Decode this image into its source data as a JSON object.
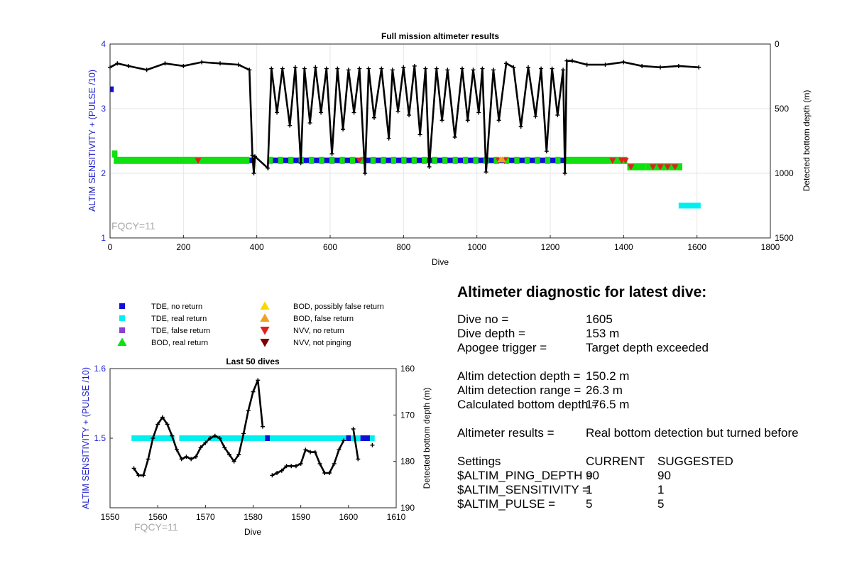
{
  "colors": {
    "tde_no_return": "#1010d8",
    "tde_real_return": "#00f0f0",
    "tde_false_return": "#8a3fd8",
    "bod_real_return": "#10e010",
    "bod_possibly_false": "#f8d800",
    "bod_false_return": "#f0a020",
    "nvv_no_return": "#e02020",
    "nvv_not_pinging": "#800000",
    "left_axis": "#1f1fcf",
    "fqcy_label": "#a8a8a8"
  },
  "legend": {
    "items": [
      {
        "label": "TDE, no return",
        "marker": "square",
        "color": "#1010d8"
      },
      {
        "label": "TDE, real return",
        "marker": "square",
        "color": "#00f0f0"
      },
      {
        "label": "TDE, false return",
        "marker": "square",
        "color": "#8a3fd8"
      },
      {
        "label": "BOD, real return",
        "marker": "triangle-up",
        "color": "#10e010"
      },
      {
        "label": "BOD, possibly false return",
        "marker": "triangle-up",
        "color": "#f8d800"
      },
      {
        "label": "BOD, false return",
        "marker": "triangle-up",
        "color": "#f0a020"
      },
      {
        "label": "NVV, no return",
        "marker": "triangle-down",
        "color": "#e02020"
      },
      {
        "label": "NVV, not pinging",
        "marker": "triangle-down",
        "color": "#800000"
      }
    ]
  },
  "chart_data": [
    {
      "type": "scatter",
      "title": "Full mission altimeter results",
      "xlabel": "Dive",
      "ylabel": "ALTIM SENSITIVITY + (PULSE /10)",
      "ylabel_right": "Detected bottom depth (m)",
      "xlim": [
        0,
        1800
      ],
      "ylim": [
        1,
        4
      ],
      "ylim_right": [
        1500,
        0
      ],
      "right_axis_reversed": true,
      "xticks": [
        0,
        200,
        400,
        600,
        800,
        1000,
        1200,
        1400,
        1600,
        1800
      ],
      "yticks": [
        1,
        2,
        3,
        4
      ],
      "yticks_right": [
        0,
        500,
        1000,
        1500
      ],
      "grid": true,
      "annotation": "FQCY=11",
      "settings_segments": [
        {
          "x_from": 0,
          "x_to": 10,
          "y": 3.3,
          "category": "TDE, no return"
        },
        {
          "x_from": 5,
          "x_to": 20,
          "y": 2.3,
          "category": "BOD, real return"
        },
        {
          "x_from": 10,
          "x_to": 380,
          "y": 2.2,
          "category": "BOD, real return"
        },
        {
          "x_from": 380,
          "x_to": 395,
          "y": 2.2,
          "category": "TDE, no return"
        },
        {
          "x_from": 430,
          "x_to": 1240,
          "y": 2.2,
          "category": "TDE, no return"
        },
        {
          "x_from": 430,
          "x_to": 1240,
          "y": 2.2,
          "category": "BOD, real return",
          "intermittent": true
        },
        {
          "x_from": 1240,
          "x_to": 1410,
          "y": 2.2,
          "category": "BOD, real return"
        },
        {
          "x_from": 1410,
          "x_to": 1460,
          "y": 2.1,
          "category": "BOD, real return"
        },
        {
          "x_from": 1460,
          "x_to": 1560,
          "y": 2.1,
          "category": "BOD, real return"
        },
        {
          "x_from": 1550,
          "x_to": 1610,
          "y": 1.5,
          "category": "TDE, real return"
        }
      ],
      "nvv_no_return_dives": [
        240,
        680,
        1060,
        1075,
        1370,
        1395,
        1405,
        1420,
        1480,
        1500,
        1520,
        1540
      ],
      "bod_false_return_dives": [
        1065,
        1070
      ],
      "bottom_depth": {
        "x": [
          0,
          20,
          50,
          100,
          150,
          200,
          250,
          300,
          350,
          380,
          388,
          392,
          395,
          430,
          440,
          455,
          470,
          490,
          505,
          520,
          530,
          545,
          560,
          575,
          590,
          605,
          620,
          635,
          650,
          665,
          680,
          695,
          705,
          720,
          740,
          760,
          770,
          785,
          800,
          815,
          830,
          845,
          860,
          870,
          890,
          905,
          920,
          940,
          960,
          975,
          990,
          1005,
          1015,
          1025,
          1045,
          1060,
          1080,
          1100,
          1120,
          1140,
          1160,
          1175,
          1190,
          1205,
          1220,
          1235,
          1240,
          1245,
          1260,
          1300,
          1350,
          1400,
          1450,
          1500,
          1550,
          1605
        ],
        "y": [
          180,
          150,
          170,
          200,
          150,
          170,
          140,
          150,
          160,
          200,
          860,
          1000,
          870,
          960,
          190,
          530,
          190,
          630,
          180,
          920,
          190,
          610,
          180,
          530,
          190,
          850,
          190,
          660,
          200,
          530,
          190,
          1000,
          190,
          570,
          190,
          730,
          200,
          520,
          180,
          550,
          170,
          700,
          190,
          950,
          190,
          590,
          200,
          720,
          190,
          590,
          200,
          530,
          190,
          990,
          200,
          590,
          150,
          180,
          640,
          180,
          560,
          190,
          830,
          190,
          550,
          200,
          1000,
          130,
          130,
          160,
          160,
          140,
          170,
          180,
          170,
          180
        ]
      }
    },
    {
      "type": "scatter",
      "title": "Last 50 dives",
      "xlabel": "Dive",
      "ylabel": "ALTIM SENSITIVITY + (PULSE /10)",
      "ylabel_right": "Detected bottom depth (m)",
      "xlim": [
        1550,
        1610
      ],
      "ylim": [
        1.4,
        1.6
      ],
      "ylim_right": [
        190,
        160
      ],
      "right_axis_reversed": true,
      "xticks": [
        1550,
        1560,
        1570,
        1580,
        1590,
        1600,
        1610
      ],
      "yticks": [
        1.5,
        1.6
      ],
      "yticks_right": [
        160,
        170,
        180,
        190
      ],
      "grid": false,
      "annotation": "FQCY=11",
      "settings_segments": [
        {
          "x_from": 1554.5,
          "x_to": 1563.5,
          "y": 1.5,
          "category": "TDE, real return"
        },
        {
          "x_from": 1564.5,
          "x_to": 1582.5,
          "y": 1.5,
          "category": "TDE, real return"
        },
        {
          "x_from": 1582.5,
          "x_to": 1583.5,
          "y": 1.5,
          "category": "TDE, no return"
        },
        {
          "x_from": 1583.5,
          "x_to": 1599.5,
          "y": 1.5,
          "category": "TDE, real return"
        },
        {
          "x_from": 1599.5,
          "x_to": 1600.5,
          "y": 1.5,
          "category": "TDE, no return"
        },
        {
          "x_from": 1600.5,
          "x_to": 1602.5,
          "y": 1.5,
          "category": "TDE, real return"
        },
        {
          "x_from": 1602.5,
          "x_to": 1604.5,
          "y": 1.5,
          "category": "TDE, no return"
        },
        {
          "x_from": 1604.5,
          "x_to": 1605.5,
          "y": 1.5,
          "category": "TDE, real return"
        }
      ],
      "bottom_depth_segments": [
        {
          "x": [
            1555,
            1556,
            1557,
            1558,
            1559,
            1560,
            1561,
            1562,
            1563,
            1564,
            1565,
            1566,
            1567,
            1568,
            1569,
            1570,
            1571,
            1572,
            1573,
            1574,
            1575,
            1576,
            1577,
            1578,
            1579,
            1580,
            1581,
            1582
          ],
          "y": [
            181.5,
            183,
            183,
            179.5,
            175,
            172,
            170.5,
            172,
            174.5,
            177.5,
            179.5,
            179,
            179.5,
            179,
            177,
            176,
            175,
            174.5,
            175,
            177,
            178.5,
            180,
            178.5,
            174,
            169,
            165,
            162.5,
            172.5
          ]
        },
        {
          "x": [
            1584,
            1585,
            1586,
            1587,
            1588,
            1589,
            1590,
            1591,
            1592,
            1593,
            1594,
            1595,
            1596,
            1597,
            1598,
            1599
          ],
          "y": [
            183,
            182.5,
            182,
            181,
            181,
            181,
            180.5,
            177.5,
            178,
            178,
            180.5,
            182.5,
            182.5,
            180.5,
            177.5,
            175.5
          ]
        },
        {
          "x": [
            1601,
            1602
          ],
          "y": [
            173,
            179.5
          ]
        },
        {
          "x": [
            1605
          ],
          "y": [
            176.5
          ]
        }
      ]
    }
  ],
  "diagnostic": {
    "title": "Altimeter diagnostic for latest dive:",
    "rows": [
      {
        "label": "Dive no =",
        "value": "1605"
      },
      {
        "label": "Dive depth =",
        "value": "153 m"
      },
      {
        "label": "Apogee trigger =",
        "value": "Target depth exceeded"
      }
    ],
    "detection_rows": [
      {
        "label": "Altim detection depth =",
        "value": "150.2 m"
      },
      {
        "label": "Altim detection range =",
        "value": "26.3 m"
      },
      {
        "label": "Calculated bottom depth =",
        "value": "176.5 m"
      }
    ],
    "results": {
      "label": "Altimeter results =",
      "value": "Real bottom detection but turned before"
    },
    "settings_header": {
      "label": "Settings",
      "current": "CURRENT",
      "suggested": "SUGGESTED"
    },
    "settings_rows": [
      {
        "label": "$ALTIM_PING_DEPTH =",
        "current": "90",
        "suggested": "90"
      },
      {
        "label": "$ALTIM_SENSITIVITY =",
        "current": "1",
        "suggested": "1"
      },
      {
        "label": "$ALTIM_PULSE =",
        "current": "5",
        "suggested": "5"
      }
    ]
  }
}
